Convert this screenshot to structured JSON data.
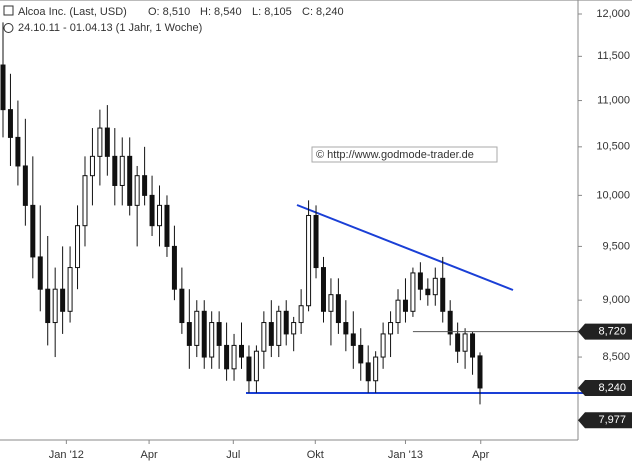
{
  "chart_data": {
    "type": "candlestick",
    "title": "Alcoa Inc. (Last, USD)",
    "ohlc_labels": [
      "O: 8,510",
      "H: 8,540",
      "L: 8,105",
      "C: 8,240"
    ],
    "subtitle": "24.10.11 - 01.04.13 (1 Jahr, 1 Woche)",
    "watermark": "© http://www.godmode-trader.de",
    "log_scale": true,
    "ylim": [
      7.82,
      12.17
    ],
    "yticks": [
      {
        "value": 8.5,
        "label": "8,500"
      },
      {
        "value": 9,
        "label": "9,000"
      },
      {
        "value": 9.5,
        "label": "9,500"
      },
      {
        "value": 10,
        "label": "10,000"
      },
      {
        "value": 10.5,
        "label": "10,500"
      },
      {
        "value": 11,
        "label": "11,000"
      },
      {
        "value": 11.5,
        "label": "11,500"
      },
      {
        "value": 12,
        "label": "12,000"
      }
    ],
    "xlim": [
      0,
      64
    ],
    "xticks": [
      {
        "value": 8.5,
        "label": "Jan '12"
      },
      {
        "value": 19.6,
        "label": "Apr"
      },
      {
        "value": 30.9,
        "label": "Jul"
      },
      {
        "value": 41.9,
        "label": "Okt"
      },
      {
        "value": 54,
        "label": "Jan '13"
      },
      {
        "value": 64.1,
        "label": "Apr"
      }
    ],
    "up_color": "#ffffff",
    "down_color": "#111111",
    "ohlc": [
      [
        11.4,
        11.9,
        10.6,
        10.9
      ],
      [
        10.9,
        11.3,
        10.3,
        10.6
      ],
      [
        10.6,
        11.0,
        10.1,
        10.3
      ],
      [
        10.3,
        10.8,
        9.7,
        9.9
      ],
      [
        9.9,
        10.4,
        9.2,
        9.4
      ],
      [
        9.4,
        9.9,
        8.9,
        9.1
      ],
      [
        9.1,
        9.6,
        8.6,
        8.8
      ],
      [
        8.8,
        9.3,
        8.5,
        9.1
      ],
      [
        9.1,
        9.5,
        8.7,
        8.9
      ],
      [
        8.9,
        9.5,
        8.8,
        9.3
      ],
      [
        9.3,
        9.9,
        9.1,
        9.7
      ],
      [
        9.7,
        10.4,
        9.5,
        10.2
      ],
      [
        10.2,
        10.7,
        9.9,
        10.4
      ],
      [
        10.4,
        10.9,
        10.1,
        10.7
      ],
      [
        10.7,
        10.95,
        10.2,
        10.4
      ],
      [
        10.4,
        10.7,
        9.9,
        10.1
      ],
      [
        10.1,
        10.6,
        9.9,
        10.4
      ],
      [
        10.4,
        10.6,
        9.8,
        9.9
      ],
      [
        9.9,
        10.3,
        9.5,
        10.2
      ],
      [
        10.2,
        10.5,
        9.9,
        10.0
      ],
      [
        10.0,
        10.2,
        9.6,
        9.7
      ],
      [
        9.7,
        10.1,
        9.5,
        9.9
      ],
      [
        9.9,
        10.0,
        9.4,
        9.5
      ],
      [
        9.5,
        9.7,
        9.0,
        9.1
      ],
      [
        9.1,
        9.3,
        8.7,
        8.8
      ],
      [
        8.8,
        9.1,
        8.4,
        8.6
      ],
      [
        8.6,
        9.0,
        8.5,
        8.9
      ],
      [
        8.9,
        9.0,
        8.4,
        8.5
      ],
      [
        8.5,
        8.9,
        8.4,
        8.8
      ],
      [
        8.8,
        8.9,
        8.4,
        8.6
      ],
      [
        8.6,
        8.8,
        8.3,
        8.4
      ],
      [
        8.4,
        8.7,
        8.3,
        8.6
      ],
      [
        8.6,
        8.8,
        8.4,
        8.5
      ],
      [
        8.5,
        8.6,
        8.2,
        8.3
      ],
      [
        8.3,
        8.6,
        8.2,
        8.55
      ],
      [
        8.55,
        8.9,
        8.4,
        8.8
      ],
      [
        8.8,
        9.0,
        8.5,
        8.6
      ],
      [
        8.6,
        8.95,
        8.5,
        8.9
      ],
      [
        8.9,
        9.0,
        8.6,
        8.7
      ],
      [
        8.7,
        8.85,
        8.55,
        8.8
      ],
      [
        8.8,
        9.1,
        8.7,
        8.95
      ],
      [
        8.95,
        9.95,
        8.9,
        9.8
      ],
      [
        9.8,
        9.9,
        9.2,
        9.3
      ],
      [
        9.3,
        9.4,
        8.8,
        8.9
      ],
      [
        8.9,
        9.2,
        8.6,
        9.05
      ],
      [
        9.05,
        9.2,
        8.7,
        8.8
      ],
      [
        8.8,
        9.0,
        8.55,
        8.7
      ],
      [
        8.7,
        8.9,
        8.4,
        8.6
      ],
      [
        8.6,
        8.75,
        8.3,
        8.45
      ],
      [
        8.45,
        8.6,
        8.2,
        8.3
      ],
      [
        8.3,
        8.55,
        8.2,
        8.5
      ],
      [
        8.5,
        8.8,
        8.4,
        8.7
      ],
      [
        8.7,
        8.9,
        8.5,
        8.8
      ],
      [
        8.8,
        9.1,
        8.7,
        9.0
      ],
      [
        9.0,
        9.2,
        8.8,
        8.9
      ],
      [
        8.9,
        9.3,
        8.85,
        9.25
      ],
      [
        9.25,
        9.35,
        9.0,
        9.1
      ],
      [
        9.1,
        9.2,
        8.95,
        9.05
      ],
      [
        9.05,
        9.3,
        8.95,
        9.2
      ],
      [
        9.2,
        9.4,
        8.8,
        8.9
      ],
      [
        8.9,
        9.0,
        8.6,
        8.7
      ],
      [
        8.7,
        8.8,
        8.45,
        8.55
      ],
      [
        8.55,
        8.75,
        8.4,
        8.7
      ],
      [
        8.7,
        8.72,
        8.35,
        8.5
      ],
      [
        8.51,
        8.54,
        8.105,
        8.24
      ]
    ],
    "annotations": [
      {
        "value": 8.72,
        "label": "8,720"
      },
      {
        "value": 8.24,
        "label": "8,240"
      },
      {
        "value": 7.977,
        "label": "7,977"
      }
    ]
  }
}
